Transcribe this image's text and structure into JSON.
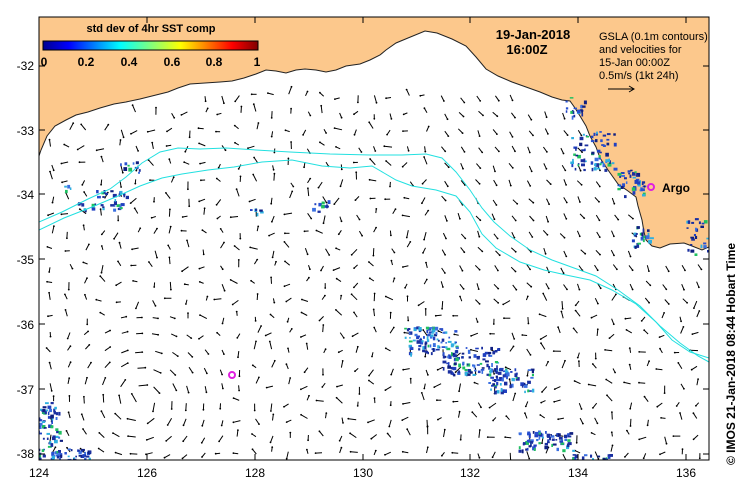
{
  "map": {
    "x_ticks": [
      "124",
      "126",
      "128",
      "130",
      "132",
      "134",
      "136"
    ],
    "y_ticks": [
      "-32",
      "-33",
      "-34",
      "-35",
      "-36",
      "-37",
      "-38"
    ]
  },
  "colorbar": {
    "title": "std dev of 4hr SST comp",
    "ticks": [
      "0",
      "0.2",
      "0.4",
      "0.6",
      "0.8",
      "1"
    ]
  },
  "header": {
    "date": "19-Jan-2018",
    "time": "16:00Z"
  },
  "legend": {
    "lines": [
      "GSLA (0.1m contours)",
      "and velocities for",
      "15-Jan 00:00Z",
      "0.5m/s (1kt 24h)"
    ]
  },
  "places": {
    "argo": "Argo"
  },
  "credit": "© IMOS 21-Jan-2018 08:44 Hobart Time",
  "colors": {
    "land": "#fcc88c",
    "contour": "#22e0e0",
    "argo": "#e020e0",
    "sst_cloud": "#1a2fa0",
    "arrows": "#000000"
  }
}
